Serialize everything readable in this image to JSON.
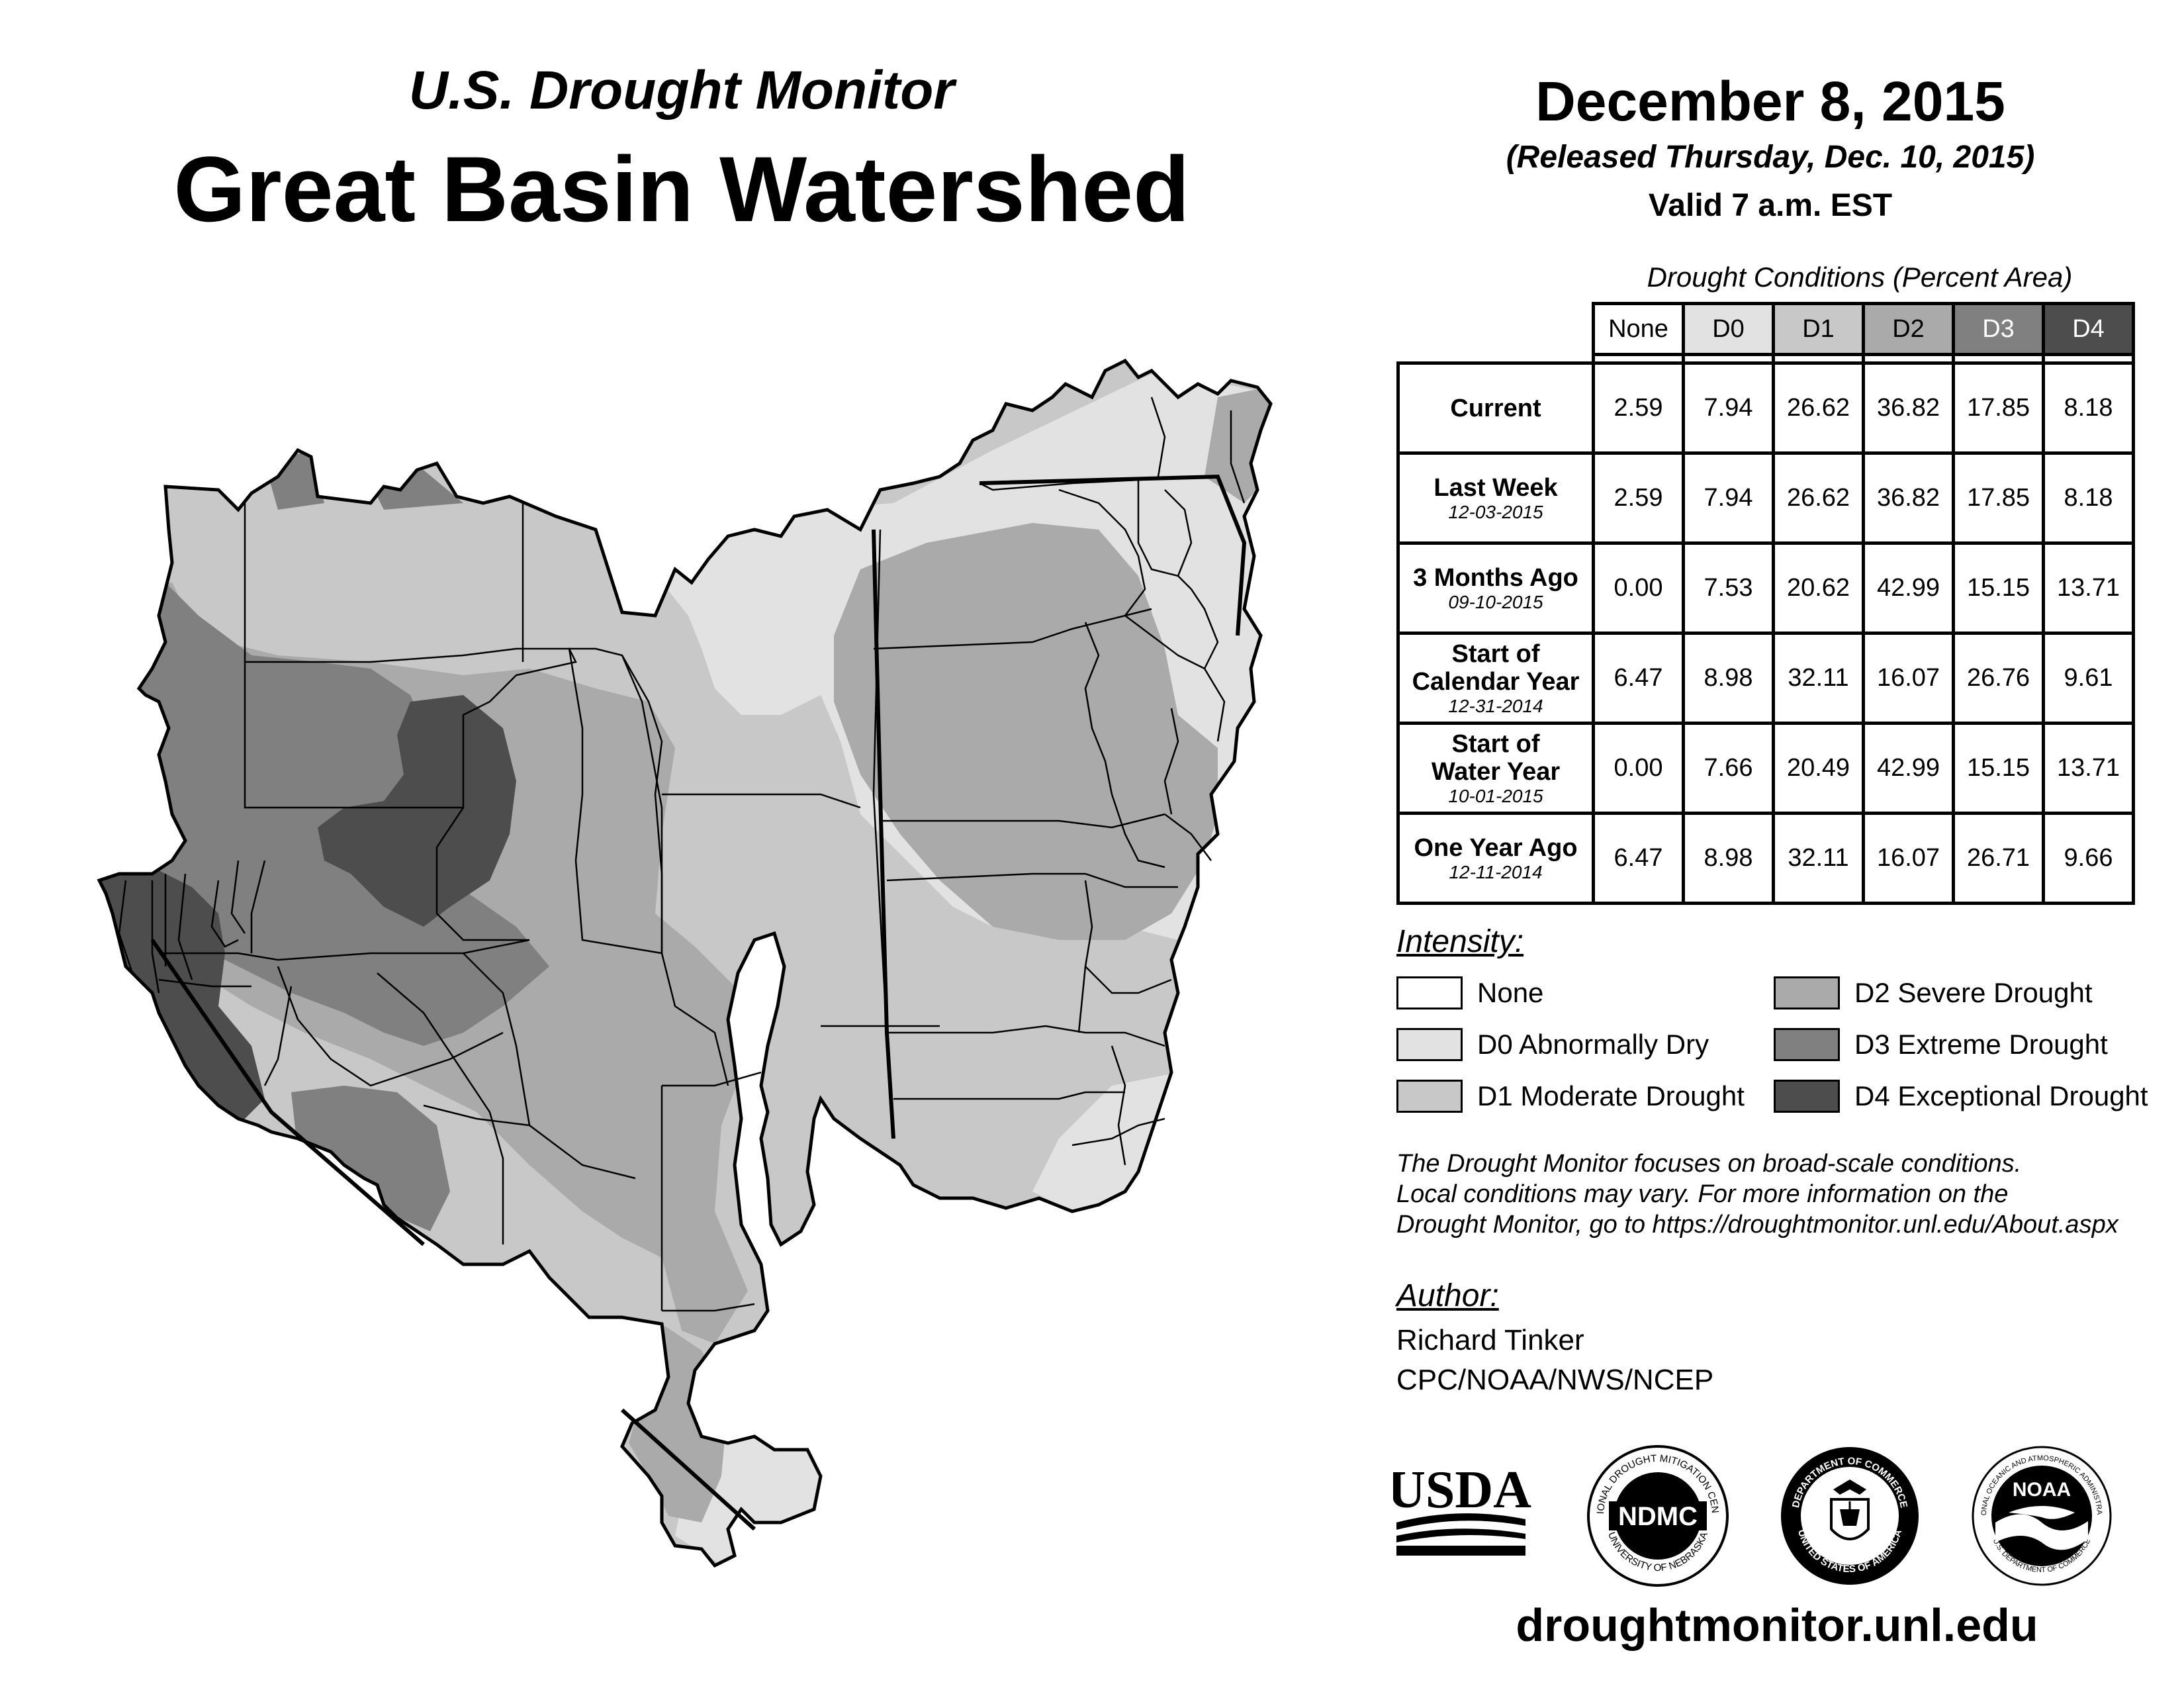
{
  "header": {
    "subtitle": "U.S. Drought Monitor",
    "title": "Great Basin Watershed",
    "date": "December 8, 2015",
    "released": "(Released Thursday, Dec. 10, 2015)",
    "valid": "Valid 7 a.m. EST"
  },
  "table": {
    "caption": "Drought Conditions (Percent Area)",
    "columns": [
      "None",
      "D0",
      "D1",
      "D2",
      "D3",
      "D4"
    ],
    "rows": [
      {
        "label": "Current",
        "label2": "",
        "date": "",
        "values": [
          "2.59",
          "7.94",
          "26.62",
          "36.82",
          "17.85",
          "8.18"
        ]
      },
      {
        "label": "Last Week",
        "label2": "",
        "date": "12-03-2015",
        "values": [
          "2.59",
          "7.94",
          "26.62",
          "36.82",
          "17.85",
          "8.18"
        ]
      },
      {
        "label": "3 Months Ago",
        "label2": "",
        "date": "09-10-2015",
        "values": [
          "0.00",
          "7.53",
          "20.62",
          "42.99",
          "15.15",
          "13.71"
        ]
      },
      {
        "label": "Start of",
        "label2": "Calendar Year",
        "date": "12-31-2014",
        "values": [
          "6.47",
          "8.98",
          "32.11",
          "16.07",
          "26.76",
          "9.61"
        ]
      },
      {
        "label": "Start of",
        "label2": "Water Year",
        "date": "10-01-2015",
        "values": [
          "0.00",
          "7.66",
          "20.49",
          "42.99",
          "15.15",
          "13.71"
        ]
      },
      {
        "label": "One Year Ago",
        "label2": "",
        "date": "12-11-2014",
        "values": [
          "6.47",
          "8.98",
          "32.11",
          "16.07",
          "26.71",
          "9.66"
        ]
      }
    ]
  },
  "legend": {
    "heading": "Intensity:",
    "items": [
      {
        "label": "None",
        "color": "#ffffff"
      },
      {
        "label": "D0 Abnormally Dry",
        "color": "#e2e2e2"
      },
      {
        "label": "D1 Moderate Drought",
        "color": "#c8c8c8"
      },
      {
        "label": "D2 Severe Drought",
        "color": "#aaaaaa"
      },
      {
        "label": "D3 Extreme Drought",
        "color": "#808080"
      },
      {
        "label": "D4 Exceptional Drought",
        "color": "#4d4d4d"
      }
    ]
  },
  "note": {
    "line1": "The Drought Monitor focuses on broad-scale conditions.",
    "line2": "Local conditions may vary. For more information on the",
    "line3": "Drought Monitor, go to https://droughtmonitor.unl.edu/About.aspx"
  },
  "author": {
    "heading": "Author:",
    "name": "Richard Tinker",
    "org": "CPC/NOAA/NWS/NCEP"
  },
  "logos": {
    "usda": "USDA",
    "ndmc": "NDMC",
    "ndmc_top": "NATIONAL DROUGHT MITIGATION CENTER",
    "ndmc_bottom": "UNIVERSITY OF NEBRASKA",
    "doc_top": "DEPARTMENT OF COMMERCE",
    "doc_bottom": "UNITED STATES OF AMERICA",
    "noaa": "NOAA",
    "noaa_top": "NATIONAL OCEANIC AND ATMOSPHERIC ADMINISTRATION",
    "noaa_bottom": "U.S. DEPARTMENT OF COMMERCE"
  },
  "footer": {
    "website": "droughtmonitor.unl.edu"
  }
}
